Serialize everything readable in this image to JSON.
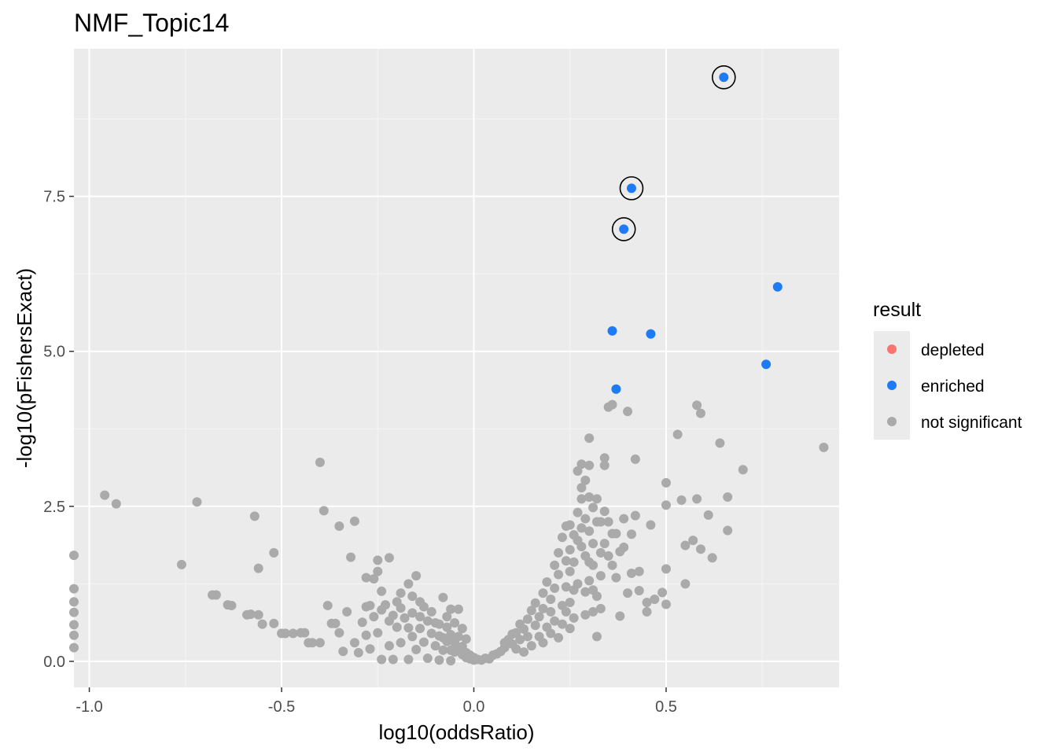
{
  "chart_data": {
    "type": "scatter",
    "title": "NMF_Topic14",
    "xlabel": "log10(oddsRatio)",
    "ylabel": "-log10(pFishersExact)",
    "xlim": [
      -1.04,
      0.95
    ],
    "ylim": [
      -0.42,
      9.88
    ],
    "x_ticks": [
      -1.0,
      -0.5,
      0.0,
      0.5
    ],
    "x_tick_labels": [
      "-1.0",
      "-0.5",
      "0.0",
      "0.5"
    ],
    "y_ticks": [
      0.0,
      2.5,
      5.0,
      7.5
    ],
    "y_tick_labels": [
      "0.0",
      "2.5",
      "5.0",
      "7.5"
    ],
    "grid": true,
    "legend": {
      "title": "result",
      "position": "right",
      "entries": [
        {
          "label": "depleted",
          "color": "#F8766D"
        },
        {
          "label": "enriched",
          "color": "#1F7BF5"
        },
        {
          "label": "not significant",
          "color": "#AAAAAA"
        }
      ]
    },
    "highlighted_points": [
      [
        0.65,
        9.42
      ],
      [
        0.41,
        7.63
      ],
      [
        0.39,
        6.97
      ]
    ],
    "series": [
      {
        "name": "enriched",
        "color": "#1F7BF5",
        "points": [
          [
            0.65,
            9.42
          ],
          [
            0.41,
            7.63
          ],
          [
            0.39,
            6.97
          ],
          [
            0.79,
            6.04
          ],
          [
            0.36,
            5.33
          ],
          [
            0.46,
            5.28
          ],
          [
            0.76,
            4.79
          ],
          [
            0.37,
            4.39
          ]
        ]
      },
      {
        "name": "not significant",
        "color": "#AAAAAA",
        "points": [
          [
            -1.04,
            1.71
          ],
          [
            -1.04,
            1.17
          ],
          [
            -1.04,
            0.96
          ],
          [
            -1.04,
            0.79
          ],
          [
            -1.04,
            0.59
          ],
          [
            -1.04,
            0.42
          ],
          [
            -1.04,
            0.22
          ],
          [
            -0.96,
            2.68
          ],
          [
            -0.93,
            2.54
          ],
          [
            -0.76,
            1.56
          ],
          [
            -0.72,
            2.57
          ],
          [
            -0.68,
            1.07
          ],
          [
            -0.67,
            1.07
          ],
          [
            -0.64,
            0.91
          ],
          [
            -0.63,
            0.9
          ],
          [
            -0.59,
            0.75
          ],
          [
            -0.58,
            0.76
          ],
          [
            -0.57,
            2.34
          ],
          [
            -0.56,
            1.5
          ],
          [
            -0.56,
            0.75
          ],
          [
            -0.55,
            0.6
          ],
          [
            -0.52,
            1.75
          ],
          [
            -0.52,
            0.61
          ],
          [
            -0.5,
            0.45
          ],
          [
            -0.49,
            0.45
          ],
          [
            -0.47,
            0.45
          ],
          [
            -0.45,
            0.46
          ],
          [
            -0.44,
            0.46
          ],
          [
            -0.43,
            0.3
          ],
          [
            -0.42,
            0.3
          ],
          [
            -0.4,
            3.21
          ],
          [
            -0.4,
            0.3
          ],
          [
            -0.39,
            2.43
          ],
          [
            -0.38,
            0.9
          ],
          [
            -0.37,
            0.61
          ],
          [
            -0.36,
            0.61
          ],
          [
            -0.35,
            2.18
          ],
          [
            -0.35,
            0.46
          ],
          [
            -0.34,
            0.16
          ],
          [
            -0.33,
            0.8
          ],
          [
            -0.32,
            1.68
          ],
          [
            -0.31,
            2.26
          ],
          [
            -0.31,
            0.3
          ],
          [
            -0.3,
            0.14
          ],
          [
            -0.29,
            0.63
          ],
          [
            -0.28,
            1.35
          ],
          [
            -0.28,
            0.88
          ],
          [
            -0.28,
            0.42
          ],
          [
            -0.27,
            0.9
          ],
          [
            -0.27,
            0.2
          ],
          [
            -0.26,
            1.33
          ],
          [
            -0.26,
            0.72
          ],
          [
            -0.25,
            1.63
          ],
          [
            -0.25,
            1.45
          ],
          [
            -0.25,
            0.46
          ],
          [
            -0.24,
            1.13
          ],
          [
            -0.24,
            0.83
          ],
          [
            -0.24,
            0.03
          ],
          [
            -0.23,
            0.91
          ],
          [
            -0.22,
            1.67
          ],
          [
            -0.22,
            0.65
          ],
          [
            -0.22,
            0.25
          ],
          [
            -0.21,
            0.74
          ],
          [
            -0.21,
            0.03
          ],
          [
            -0.2,
            0.96
          ],
          [
            -0.2,
            0.55
          ],
          [
            -0.19,
            1.1
          ],
          [
            -0.19,
            0.86
          ],
          [
            -0.19,
            0.3
          ],
          [
            -0.18,
            0.7
          ],
          [
            -0.17,
            1.25
          ],
          [
            -0.17,
            0.54
          ],
          [
            -0.17,
            0.03
          ],
          [
            -0.16,
            1.05
          ],
          [
            -0.16,
            0.78
          ],
          [
            -0.16,
            0.4
          ],
          [
            -0.15,
            1.38
          ],
          [
            -0.15,
            0.19
          ],
          [
            -0.14,
            0.96
          ],
          [
            -0.14,
            0.72
          ],
          [
            -0.14,
            0.53
          ],
          [
            -0.13,
            0.88
          ],
          [
            -0.13,
            0.31
          ],
          [
            -0.12,
            0.65
          ],
          [
            -0.12,
            0.05
          ],
          [
            -0.11,
            0.45
          ],
          [
            -0.11,
            0.8
          ],
          [
            -0.1,
            0.62
          ],
          [
            -0.1,
            0.25
          ],
          [
            -0.09,
            0.41
          ],
          [
            -0.09,
            0.6
          ],
          [
            -0.09,
            0.02
          ],
          [
            -0.08,
            0.38
          ],
          [
            -0.08,
            0.18
          ],
          [
            -0.08,
            1.03
          ],
          [
            -0.07,
            0.55
          ],
          [
            -0.07,
            0.32
          ],
          [
            -0.07,
            0.72
          ],
          [
            -0.06,
            0.18
          ],
          [
            -0.06,
            0.84
          ],
          [
            -0.06,
            0.43
          ],
          [
            -0.06,
            0.01
          ],
          [
            -0.05,
            0.3
          ],
          [
            -0.05,
            0.62
          ],
          [
            -0.05,
            0.15
          ],
          [
            -0.04,
            0.22
          ],
          [
            -0.04,
            0.4
          ],
          [
            -0.04,
            0.84
          ],
          [
            -0.03,
            0.11
          ],
          [
            -0.03,
            0.53
          ],
          [
            -0.03,
            0.24
          ],
          [
            -0.02,
            0.06
          ],
          [
            -0.02,
            0.14
          ],
          [
            -0.02,
            0.36
          ],
          [
            -0.01,
            0.04
          ],
          [
            -0.01,
            0.1
          ],
          [
            0.0,
            0.02
          ],
          [
            0.0,
            0.06
          ],
          [
            0.01,
            0.03
          ],
          [
            0.02,
            0.02
          ],
          [
            0.03,
            0.05
          ],
          [
            0.04,
            0.04
          ],
          [
            0.05,
            0.1
          ],
          [
            0.06,
            0.12
          ],
          [
            0.07,
            0.16
          ],
          [
            0.08,
            0.22
          ],
          [
            0.08,
            0.3
          ],
          [
            0.09,
            0.35
          ],
          [
            0.1,
            0.28
          ],
          [
            0.1,
            0.44
          ],
          [
            0.11,
            0.2
          ],
          [
            0.11,
            0.46
          ],
          [
            0.12,
            0.6
          ],
          [
            0.12,
            0.35
          ],
          [
            0.13,
            0.15
          ],
          [
            0.13,
            0.52
          ],
          [
            0.14,
            0.68
          ],
          [
            0.14,
            0.4
          ],
          [
            0.15,
            0.82
          ],
          [
            0.15,
            0.25
          ],
          [
            0.16,
            0.58
          ],
          [
            0.16,
            0.94
          ],
          [
            0.17,
            0.72
          ],
          [
            0.17,
            0.4
          ],
          [
            0.18,
            1.1
          ],
          [
            0.18,
            0.85
          ],
          [
            0.18,
            0.3
          ],
          [
            0.19,
            1.28
          ],
          [
            0.19,
            0.55
          ],
          [
            0.2,
            1.0
          ],
          [
            0.2,
            0.8
          ],
          [
            0.2,
            0.45
          ],
          [
            0.21,
            1.55
          ],
          [
            0.21,
            1.18
          ],
          [
            0.21,
            0.65
          ],
          [
            0.22,
            1.75
          ],
          [
            0.22,
            1.4
          ],
          [
            0.22,
            0.38
          ],
          [
            0.23,
            2.0
          ],
          [
            0.23,
            0.9
          ],
          [
            0.23,
            0.6
          ],
          [
            0.24,
            2.18
          ],
          [
            0.24,
            1.62
          ],
          [
            0.24,
            1.2
          ],
          [
            0.24,
            0.8
          ],
          [
            0.25,
            2.2
          ],
          [
            0.25,
            1.8
          ],
          [
            0.25,
            1.45
          ],
          [
            0.25,
            0.95
          ],
          [
            0.25,
            0.53
          ],
          [
            0.26,
            2.04
          ],
          [
            0.26,
            1.6
          ],
          [
            0.26,
            1.15
          ],
          [
            0.26,
            0.7
          ],
          [
            0.27,
            3.07
          ],
          [
            0.27,
            2.4
          ],
          [
            0.27,
            1.95
          ],
          [
            0.27,
            1.25
          ],
          [
            0.28,
            3.18
          ],
          [
            0.28,
            2.8
          ],
          [
            0.28,
            2.62
          ],
          [
            0.28,
            2.15
          ],
          [
            0.28,
            1.85
          ],
          [
            0.29,
            2.92
          ],
          [
            0.29,
            2.3
          ],
          [
            0.29,
            1.7
          ],
          [
            0.29,
            1.12
          ],
          [
            0.29,
            0.75
          ],
          [
            0.3,
            3.6
          ],
          [
            0.3,
            3.16
          ],
          [
            0.3,
            2.65
          ],
          [
            0.3,
            2.1
          ],
          [
            0.3,
            1.6
          ],
          [
            0.3,
            1.3
          ],
          [
            0.31,
            2.48
          ],
          [
            0.31,
            1.9
          ],
          [
            0.31,
            1.55
          ],
          [
            0.31,
            1.15
          ],
          [
            0.31,
            0.8
          ],
          [
            0.32,
            2.62
          ],
          [
            0.32,
            2.25
          ],
          [
            0.32,
            1.05
          ],
          [
            0.32,
            0.4
          ],
          [
            0.33,
            2.25
          ],
          [
            0.33,
            1.75
          ],
          [
            0.33,
            1.38
          ],
          [
            0.33,
            0.85
          ],
          [
            0.34,
            3.28
          ],
          [
            0.34,
            3.16
          ],
          [
            0.34,
            2.42
          ],
          [
            0.34,
            1.9
          ],
          [
            0.35,
            4.1
          ],
          [
            0.35,
            2.25
          ],
          [
            0.35,
            1.7
          ],
          [
            0.36,
            4.14
          ],
          [
            0.36,
            1.55
          ],
          [
            0.36,
            2.06
          ],
          [
            0.37,
            2.06
          ],
          [
            0.37,
            1.35
          ],
          [
            0.38,
            1.77
          ],
          [
            0.38,
            0.73
          ],
          [
            0.39,
            2.3
          ],
          [
            0.39,
            1.84
          ],
          [
            0.4,
            4.03
          ],
          [
            0.4,
            1.1
          ],
          [
            0.41,
            2.05
          ],
          [
            0.41,
            1.42
          ],
          [
            0.42,
            3.26
          ],
          [
            0.42,
            2.35
          ],
          [
            0.43,
            1.45
          ],
          [
            0.43,
            1.14
          ],
          [
            0.45,
            0.95
          ],
          [
            0.45,
            0.8
          ],
          [
            0.46,
            2.2
          ],
          [
            0.47,
            1.0
          ],
          [
            0.49,
            1.11
          ],
          [
            0.5,
            0.92
          ],
          [
            0.5,
            2.52
          ],
          [
            0.5,
            2.88
          ],
          [
            0.5,
            1.49
          ],
          [
            0.53,
            3.66
          ],
          [
            0.54,
            2.6
          ],
          [
            0.55,
            1.25
          ],
          [
            0.55,
            1.87
          ],
          [
            0.57,
            1.95
          ],
          [
            0.58,
            4.13
          ],
          [
            0.58,
            2.62
          ],
          [
            0.59,
            4.0
          ],
          [
            0.59,
            1.81
          ],
          [
            0.61,
            2.36
          ],
          [
            0.62,
            1.67
          ],
          [
            0.64,
            3.52
          ],
          [
            0.66,
            2.11
          ],
          [
            0.66,
            2.65
          ],
          [
            0.7,
            3.09
          ],
          [
            0.91,
            3.45
          ]
        ]
      }
    ]
  }
}
